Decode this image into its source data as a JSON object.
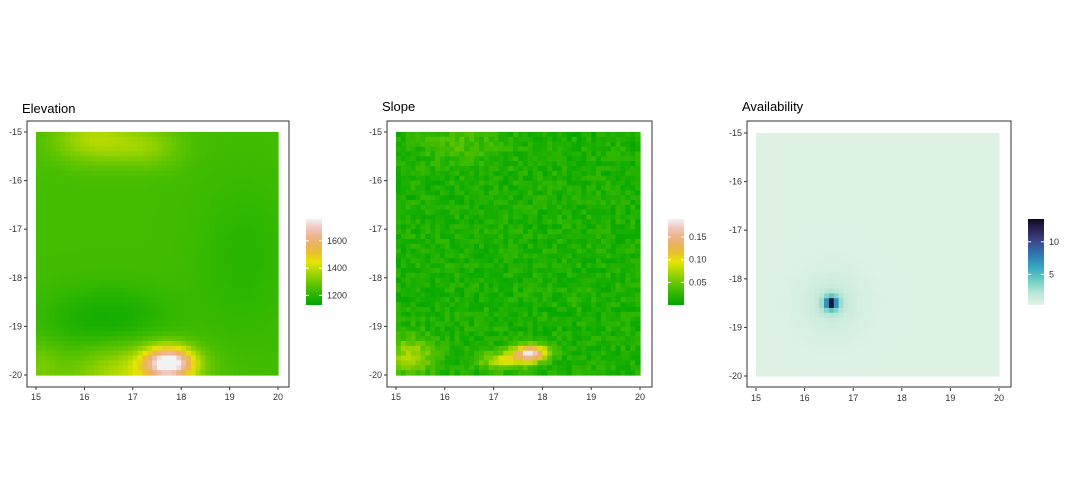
{
  "chart_data": [
    {
      "type": "heatmap",
      "title": "Elevation",
      "xlabel": "",
      "ylabel": "",
      "xlim": [
        15,
        20
      ],
      "ylim": [
        -20,
        -15
      ],
      "x_ticks": [
        15,
        16,
        17,
        18,
        19,
        20
      ],
      "y_ticks": [
        -15,
        -16,
        -17,
        -18,
        -19,
        -20
      ],
      "legend": {
        "ticks": [
          1200,
          1400,
          1600
        ],
        "range": [
          1130,
          1760
        ],
        "placement": "right",
        "colors": [
          "#00a600",
          "#24b300",
          "#4ec000",
          "#7ccc00",
          "#b0d900",
          "#e6e600",
          "#e8c32e",
          "#ebb25e",
          "#edb48e",
          "#f0c9c0",
          "#f2f2f2"
        ]
      },
      "pattern": {
        "base": 1240,
        "features": [
          {
            "x": 17.75,
            "y": -19.75,
            "sx": 0.35,
            "sy": 0.22,
            "amp": 520
          },
          {
            "x": 17.0,
            "y": -19.95,
            "sx": 0.9,
            "sy": 0.45,
            "amp": 160
          },
          {
            "x": 16.2,
            "y": -15.15,
            "sx": 0.6,
            "sy": 0.35,
            "amp": 140
          },
          {
            "x": 17.3,
            "y": -15.3,
            "sx": 0.5,
            "sy": 0.3,
            "amp": 90
          },
          {
            "x": 15.1,
            "y": -19.8,
            "sx": 0.3,
            "sy": 0.35,
            "amp": 60
          },
          {
            "x": 16.5,
            "y": -18.9,
            "sx": 0.9,
            "sy": 0.5,
            "amp": -80
          },
          {
            "x": 19.3,
            "y": -17.6,
            "sx": 0.7,
            "sy": 1.2,
            "amp": -40
          }
        ]
      }
    },
    {
      "type": "heatmap",
      "title": "Slope",
      "xlabel": "",
      "ylabel": "",
      "xlim": [
        15,
        20
      ],
      "ylim": [
        -20,
        -15
      ],
      "x_ticks": [
        15,
        16,
        17,
        18,
        19,
        20
      ],
      "y_ticks": [
        -15,
        -16,
        -17,
        -18,
        -19,
        -20
      ],
      "legend": {
        "ticks": [
          0.05,
          0.1,
          0.15
        ],
        "range": [
          0.0,
          0.19
        ],
        "placement": "right",
        "colors": [
          "#00a600",
          "#24b300",
          "#4ec000",
          "#7ccc00",
          "#b0d900",
          "#e6e600",
          "#e8c32e",
          "#ebb25e",
          "#edb48e",
          "#f0c9c0",
          "#f2f2f2"
        ]
      },
      "pattern": {
        "base": 0.015,
        "noise": 0.012,
        "features": [
          {
            "x": 17.75,
            "y": -19.55,
            "sx": 0.25,
            "sy": 0.12,
            "amp": 0.16
          },
          {
            "x": 17.2,
            "y": -19.7,
            "sx": 0.35,
            "sy": 0.12,
            "amp": 0.07
          },
          {
            "x": 15.3,
            "y": -19.6,
            "sx": 0.35,
            "sy": 0.25,
            "amp": 0.06
          },
          {
            "x": 16.3,
            "y": -15.2,
            "sx": 0.6,
            "sy": 0.3,
            "amp": 0.02
          }
        ]
      }
    },
    {
      "type": "heatmap",
      "title": "Availability",
      "xlabel": "",
      "ylabel": "",
      "xlim": [
        15,
        20
      ],
      "ylim": [
        -20,
        -15
      ],
      "x_ticks": [
        15,
        16,
        17,
        18,
        19,
        20
      ],
      "y_ticks": [
        -15,
        -16,
        -17,
        -18,
        -19,
        -20
      ],
      "legend": {
        "ticks": [
          5,
          10
        ],
        "range": [
          0.3,
          13.5
        ],
        "placement": "right",
        "colors": [
          "#e0f3e5",
          "#b9e6d6",
          "#6ccfc4",
          "#3aaac0",
          "#2e7fb4",
          "#3a4f92",
          "#2f2a5c",
          "#120822"
        ]
      },
      "pattern": {
        "base": 0.4,
        "features": [
          {
            "x": 16.55,
            "y": -18.5,
            "sx": 0.07,
            "sy": 0.07,
            "amp": 10.5
          },
          {
            "x": 16.55,
            "y": -18.5,
            "sx": 0.16,
            "sy": 0.16,
            "amp": 3.5
          },
          {
            "x": 16.55,
            "y": -18.5,
            "sx": 0.55,
            "sy": 0.55,
            "amp": 0.9
          }
        ]
      }
    }
  ]
}
